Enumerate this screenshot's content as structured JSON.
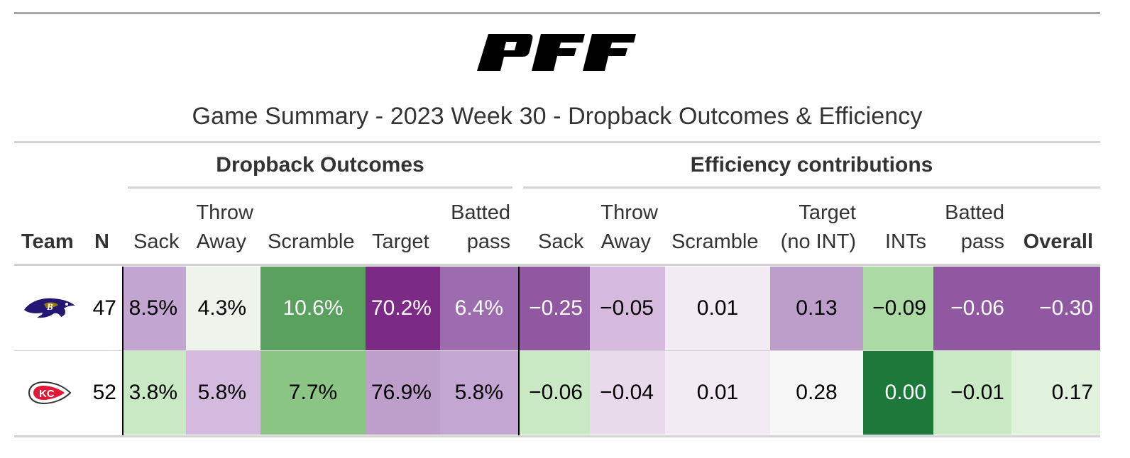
{
  "logo": {
    "text": "PFF"
  },
  "title": "Game Summary - 2023 Week 30 - Dropback Outcomes & Efficiency",
  "spanners": {
    "dropback": "Dropback Outcomes",
    "efficiency": "Efficiency contributions"
  },
  "columns": {
    "team": "Team",
    "n": "N",
    "sack": "Sack",
    "throw_away_1": "Throw",
    "throw_away_2": "Away",
    "scramble": "Scramble",
    "target": "Target",
    "batted_1": "Batted",
    "batted_2": "pass",
    "eff_sack": "Sack",
    "eff_throw_1": "Throw",
    "eff_throw_2": "Away",
    "eff_scramble": "Scramble",
    "eff_target_1": "Target",
    "eff_target_2": "(no INT)",
    "ints": "INTs",
    "eff_batted_1": "Batted",
    "eff_batted_2": "pass",
    "overall": "Overall"
  },
  "rows": [
    {
      "team_icon": "ravens-logo",
      "n": "47",
      "sack": "8.5%",
      "throw_away": "4.3%",
      "scramble": "10.6%",
      "target": "70.2%",
      "batted": "6.4%",
      "eff_sack": "−0.25",
      "eff_throw": "−0.05",
      "eff_scramble": "0.01",
      "eff_target": "0.13",
      "ints": "−0.09",
      "eff_batted": "−0.06",
      "overall": "−0.30"
    },
    {
      "team_icon": "chiefs-logo",
      "n": "52",
      "sack": "3.8%",
      "throw_away": "5.8%",
      "scramble": "7.7%",
      "target": "76.9%",
      "batted": "5.8%",
      "eff_sack": "−0.06",
      "eff_throw": "−0.04",
      "eff_scramble": "0.01",
      "eff_target": "0.28",
      "ints": "0.00",
      "eff_batted": "−0.01",
      "overall": "0.17"
    }
  ],
  "colors": {
    "row0": {
      "sack": "#c2a5d0",
      "throw_away": "#eef3ec",
      "scramble": "#5aa05e",
      "target": "#7b2a85",
      "batted": "#9c6caf",
      "eff_sack": "#8f58a0",
      "eff_throw": "#d5bade",
      "eff_scramble": "#f3ebf3",
      "eff_target": "#bd9ecb",
      "ints": "#acdaa4",
      "eff_batted": "#8f58a0",
      "overall": "#8f58a0"
    },
    "row1": {
      "sack": "#c9e8c4",
      "throw_away": "#d4bade",
      "scramble": "#8ac583",
      "target": "#be9fcc",
      "batted": "#c4a6d2",
      "eff_sack": "#c9e8c4",
      "eff_throw": "#e8d9eb",
      "eff_scramble": "#f3ebf3",
      "eff_target": "#f6f6f6",
      "ints": "#1c7939",
      "eff_batted": "#c9e8c4",
      "overall": "#e0f1dc"
    }
  }
}
